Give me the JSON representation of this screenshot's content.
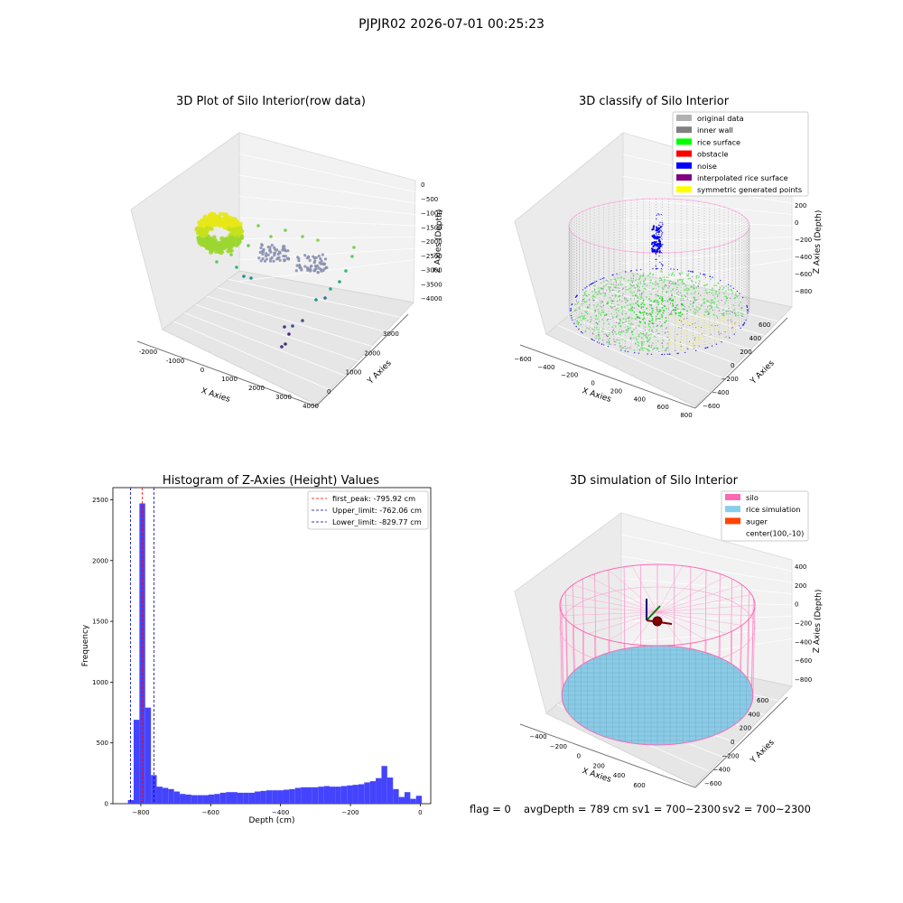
{
  "figure": {
    "title": "PJPJR02 2026-07-01 00:25:23",
    "status_line": {
      "flag": "flag = 0",
      "avg_depth": "avgDepth = 789 cm",
      "sv1": "sv1 = 700~2300",
      "sv2": "sv2 = 700~2300"
    }
  },
  "chart_data": [
    {
      "type": "scatter3d",
      "title": "3D Plot of Silo Interior(row data)",
      "xlabel": "X Axies",
      "ylabel": "Y Axies",
      "zlabel": "Z Axies (Depth)",
      "x_ticks": [
        "-2000",
        "-1000",
        "0",
        "1000",
        "2000",
        "3000",
        "4000"
      ],
      "y_ticks": [
        "0",
        "1000",
        "2000",
        "3000"
      ],
      "z_ticks": [
        "0",
        "−500",
        "−1000",
        "−1500",
        "−2000",
        "−2500",
        "−3000",
        "−3500",
        "−4000"
      ],
      "xlim": [
        -2500,
        4500
      ],
      "ylim": [
        -500,
        3500
      ],
      "zlim": [
        -4300,
        200
      ],
      "colormap": [
        "#440154",
        "#3b528b",
        "#21918c",
        "#5ec962",
        "#fde725"
      ],
      "grid": true
    },
    {
      "type": "scatter3d",
      "title": "3D classify of Silo Interior",
      "xlabel": "X Axies",
      "ylabel": "Y Axies",
      "zlabel": "Z Axies (Depth)",
      "x_ticks": [
        "−600",
        "−400",
        "−200",
        "0",
        "200",
        "400",
        "600",
        "800"
      ],
      "y_ticks": [
        "−600",
        "−400",
        "−200",
        "0",
        "200",
        "400",
        "600"
      ],
      "z_ticks": [
        "200",
        "0",
        "−200",
        "−400",
        "−600",
        "−800"
      ],
      "xlim": [
        -700,
        850
      ],
      "ylim": [
        -700,
        700
      ],
      "zlim": [
        -900,
        300
      ],
      "legend": [
        {
          "label": "original data",
          "color": "#b0b0b0"
        },
        {
          "label": "inner wall",
          "color": "#808080"
        },
        {
          "label": "rice surface",
          "color": "#00ff00"
        },
        {
          "label": "obstacle",
          "color": "#ff0000"
        },
        {
          "label": "noise",
          "color": "#0000ff"
        },
        {
          "label": "interpolated rice surface",
          "color": "#800080"
        },
        {
          "label": "symmetric generated points",
          "color": "#ffff00"
        }
      ],
      "legend_position": "top-right",
      "grid": true
    },
    {
      "type": "bar",
      "title": "Histogram of Z-Axies (Height) Values",
      "xlabel": "Depth (cm)",
      "ylabel": "Frequency",
      "xlim": [
        -880,
        30
      ],
      "ylim": [
        0,
        2600
      ],
      "x_ticks": [
        -800,
        -600,
        -400,
        -200,
        0
      ],
      "x_tick_labels": [
        "−800",
        "−600",
        "−400",
        "−200",
        "0"
      ],
      "y_ticks": [
        0,
        500,
        1000,
        1500,
        2000,
        2500
      ],
      "bar_color": "#4444ff",
      "bin_width": 16.5,
      "bins": [
        {
          "x0": -837,
          "value": 30
        },
        {
          "x0": -820.5,
          "value": 690
        },
        {
          "x0": -804,
          "value": 2470
        },
        {
          "x0": -787.5,
          "value": 790
        },
        {
          "x0": -771,
          "value": 235
        },
        {
          "x0": -754.5,
          "value": 140
        },
        {
          "x0": -738,
          "value": 130
        },
        {
          "x0": -721.5,
          "value": 120
        },
        {
          "x0": -705,
          "value": 100
        },
        {
          "x0": -688.5,
          "value": 80
        },
        {
          "x0": -672,
          "value": 75
        },
        {
          "x0": -655.5,
          "value": 70
        },
        {
          "x0": -639,
          "value": 70
        },
        {
          "x0": -622.5,
          "value": 70
        },
        {
          "x0": -606,
          "value": 75
        },
        {
          "x0": -589.5,
          "value": 80
        },
        {
          "x0": -573,
          "value": 90
        },
        {
          "x0": -556.5,
          "value": 95
        },
        {
          "x0": -540,
          "value": 95
        },
        {
          "x0": -523.5,
          "value": 90
        },
        {
          "x0": -507,
          "value": 90
        },
        {
          "x0": -490.5,
          "value": 90
        },
        {
          "x0": -474,
          "value": 100
        },
        {
          "x0": -457.5,
          "value": 105
        },
        {
          "x0": -441,
          "value": 110
        },
        {
          "x0": -424.5,
          "value": 110
        },
        {
          "x0": -408,
          "value": 110
        },
        {
          "x0": -391.5,
          "value": 115
        },
        {
          "x0": -375,
          "value": 120
        },
        {
          "x0": -358.5,
          "value": 130
        },
        {
          "x0": -342,
          "value": 135
        },
        {
          "x0": -325.5,
          "value": 135
        },
        {
          "x0": -309,
          "value": 135
        },
        {
          "x0": -292.5,
          "value": 140
        },
        {
          "x0": -276,
          "value": 145
        },
        {
          "x0": -259.5,
          "value": 140
        },
        {
          "x0": -243,
          "value": 140
        },
        {
          "x0": -226.5,
          "value": 145
        },
        {
          "x0": -210,
          "value": 150
        },
        {
          "x0": -193.5,
          "value": 155
        },
        {
          "x0": -177,
          "value": 160
        },
        {
          "x0": -160.5,
          "value": 175
        },
        {
          "x0": -144,
          "value": 185
        },
        {
          "x0": -127.5,
          "value": 210
        },
        {
          "x0": -111,
          "value": 310
        },
        {
          "x0": -94.5,
          "value": 215
        },
        {
          "x0": -78,
          "value": 120
        },
        {
          "x0": -61.5,
          "value": 55
        },
        {
          "x0": -45,
          "value": 95
        },
        {
          "x0": -28.5,
          "value": 40
        },
        {
          "x0": -12,
          "value": 65
        }
      ],
      "vlines": [
        {
          "x": -795.92,
          "color": "#ff0000",
          "label": "first_peak: -795.92 cm"
        },
        {
          "x": -762.06,
          "color": "#0000aa",
          "label": "Upper_limit: -762.06 cm"
        },
        {
          "x": -829.77,
          "color": "#0000aa",
          "label": "Lower_limit: -829.77 cm"
        }
      ],
      "legend_position": "top-right",
      "grid": false
    },
    {
      "type": "surface3d",
      "title": "3D simulation of Silo Interior",
      "xlabel": "X Axies",
      "ylabel": "Y Axies",
      "zlabel": "Z Axies (Depth)",
      "x_ticks": [
        "−400",
        "−200",
        "0",
        "200",
        "400",
        "600"
      ],
      "y_ticks": [
        "−600",
        "−400",
        "−200",
        "0",
        "200",
        "400",
        "600"
      ],
      "z_ticks": [
        "400",
        "200",
        "0",
        "−200",
        "−400",
        "−600",
        "−800"
      ],
      "xlim": [
        -550,
        750
      ],
      "ylim": [
        -700,
        700
      ],
      "zlim": [
        -900,
        500
      ],
      "legend": [
        {
          "label": "silo",
          "color": "#ff69b4"
        },
        {
          "label": "rice simulation",
          "color": "#87ceeb"
        },
        {
          "label": "auger",
          "color": "#ff4500"
        },
        {
          "label": "center(100,-10)",
          "color": ""
        }
      ],
      "legend_position": "top-right",
      "grid": true
    }
  ]
}
